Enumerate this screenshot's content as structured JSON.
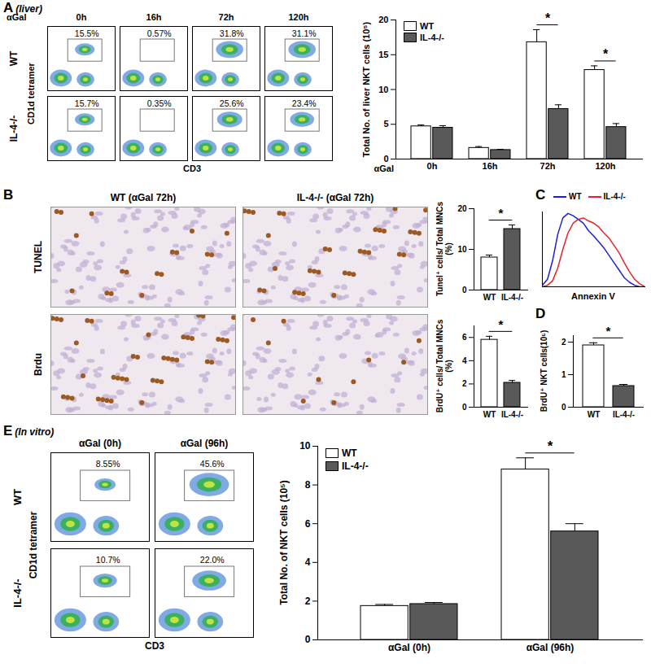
{
  "panel_labels": [
    {
      "label": "A",
      "note": "(liver)"
    },
    {
      "label": "B"
    },
    {
      "label": "C"
    },
    {
      "label": "D"
    },
    {
      "label": "E",
      "note": "(In vitro)"
    }
  ],
  "flow_plots": [
    {
      "treatment": "αGal",
      "columns": [
        "0h",
        "16h",
        "72h",
        "120h"
      ],
      "rows": [
        {
          "name": "WT",
          "percents": [
            "15.5%",
            "0.57%",
            "31.8%",
            "31.1%"
          ]
        },
        {
          "name": "IL-4-/-",
          "percents": [
            "15.7%",
            "0.35%",
            "25.6%",
            "23.4%"
          ]
        }
      ],
      "x_label": "CD3",
      "y_label": "CD1d tetramer"
    },
    {
      "columns": [
        "αGal (0h)",
        "αGal (96h)"
      ],
      "rows": [
        {
          "name": "WT",
          "percents": [
            "8.55%",
            "45.6%"
          ]
        },
        {
          "name": "IL-4-/-",
          "percents": [
            "10.7%",
            "22.0%"
          ]
        }
      ],
      "x_label": "CD3",
      "y_label": "CD1d tetramer"
    }
  ],
  "images": {
    "columns": [
      "WT (αGal 72h)",
      "IL-4-/- (αGal 72h)"
    ],
    "rows": [
      "TUNEL",
      "Brdu"
    ]
  },
  "chart_data": [
    {
      "type": "bar",
      "y_label": "Total No. of liver NKT cells (10⁵)",
      "x_label": "αGal",
      "categories": [
        "0h",
        "16h",
        "72h",
        "120h"
      ],
      "series": [
        {
          "name": "WT",
          "color": "#ffffff",
          "values": [
            4.7,
            1.6,
            16.8,
            12.8
          ],
          "errors": [
            0.2,
            0.2,
            1.8,
            0.6
          ]
        },
        {
          "name": "IL-4-/-",
          "color": "#595959",
          "values": [
            4.5,
            1.3,
            7.2,
            4.6
          ],
          "errors": [
            0.3,
            0.1,
            0.6,
            0.5
          ]
        }
      ],
      "ylim": [
        0,
        20
      ],
      "yticks": [
        0,
        5,
        10,
        15,
        20
      ],
      "legend": "top-left",
      "annotations": [
        {
          "x": "72h",
          "text": "*"
        },
        {
          "x": "120h",
          "text": "*"
        }
      ]
    },
    {
      "type": "bar",
      "y_label": "Tunel⁺ cells/ Total MNCs (%)",
      "categories": [
        "WT",
        "IL-4-/-"
      ],
      "values": [
        8,
        15
      ],
      "errors": [
        0.6,
        1.0
      ],
      "colors": [
        "#ffffff",
        "#595959"
      ],
      "ylim": [
        0,
        20
      ],
      "yticks": [
        0,
        10,
        20
      ],
      "annotations": [
        {
          "x": [
            "WT",
            "IL-4-/-"
          ],
          "text": "*"
        }
      ]
    },
    {
      "type": "bar",
      "y_label": "BrdU⁺ cells/ Total MNCs (%)",
      "categories": [
        "WT",
        "IL-4-/-"
      ],
      "values": [
        5.8,
        2.1
      ],
      "errors": [
        0.3,
        0.2
      ],
      "colors": [
        "#ffffff",
        "#595959"
      ],
      "ylim": [
        0,
        7
      ],
      "yticks": [
        0,
        2,
        4,
        6
      ],
      "annotations": [
        {
          "x": [
            "WT",
            "IL-4-/-"
          ],
          "text": "*"
        }
      ]
    },
    {
      "type": "line",
      "x_label": "Annexin V",
      "x": [
        0,
        5,
        10,
        15,
        20,
        25,
        30,
        35,
        40,
        45,
        50,
        55,
        60,
        65,
        70,
        75,
        80,
        85,
        90,
        95,
        100
      ],
      "series": [
        {
          "name": "WT",
          "color": "#1f1fd6",
          "values": [
            2,
            10,
            35,
            70,
            92,
            98,
            95,
            90,
            85,
            75,
            68,
            60,
            52,
            42,
            32,
            22,
            12,
            6,
            2,
            0,
            0
          ]
        },
        {
          "name": "IL-4-/-",
          "color": "#e8222a",
          "values": [
            0,
            2,
            8,
            25,
            50,
            72,
            85,
            90,
            92,
            88,
            85,
            80,
            72,
            65,
            55,
            45,
            32,
            20,
            10,
            4,
            0
          ]
        }
      ],
      "xlim": [
        0,
        100
      ],
      "ylim": [
        0,
        100
      ],
      "tick_labels": false,
      "legend": "top-left"
    },
    {
      "type": "bar",
      "y_label": "BrdU⁺ NKT cells(10⁵)",
      "categories": [
        "WT",
        "IL-4-/-"
      ],
      "values": [
        1.9,
        0.65
      ],
      "errors": [
        0.08,
        0.05
      ],
      "colors": [
        "#ffffff",
        "#595959"
      ],
      "ylim": [
        0,
        2.2
      ],
      "yticks": [
        0,
        1,
        2
      ],
      "annotations": [
        {
          "x": [
            "WT",
            "IL-4-/-"
          ],
          "text": "*"
        }
      ]
    },
    {
      "type": "bar",
      "y_label": "Total No. of NKT cells (10⁵)",
      "categories": [
        "αGal (0h)",
        "αGal (96h)"
      ],
      "series": [
        {
          "name": "WT",
          "color": "#ffffff",
          "values": [
            1.75,
            8.8
          ],
          "errors": [
            0.08,
            0.6
          ]
        },
        {
          "name": "IL-4-/-",
          "color": "#595959",
          "values": [
            1.85,
            5.6
          ],
          "errors": [
            0.08,
            0.4
          ]
        }
      ],
      "ylim": [
        0,
        10
      ],
      "yticks": [
        0,
        2,
        4,
        6,
        8,
        10
      ],
      "legend": "top-left",
      "annotations": [
        {
          "x": "αGal (96h)",
          "text": "*"
        }
      ]
    }
  ]
}
